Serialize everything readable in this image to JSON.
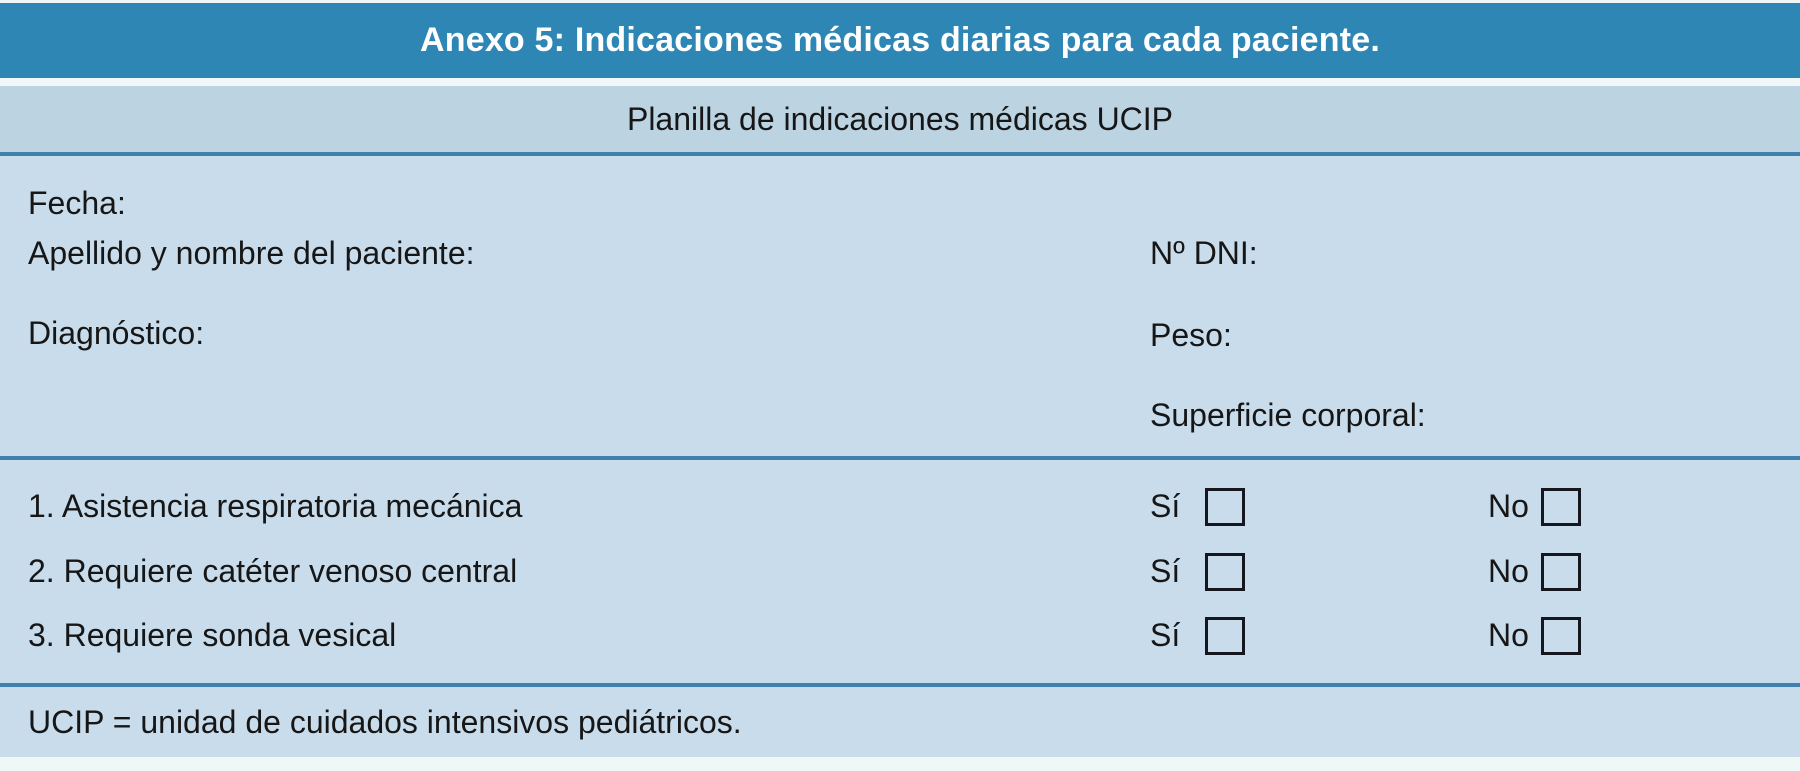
{
  "header": {
    "title": "Anexo 5: Indicaciones médicas diarias para cada paciente."
  },
  "subheader": {
    "title": "Planilla de indicaciones médicas UCIP"
  },
  "patient_info": {
    "fecha_label": "Fecha:",
    "nombre_label": "Apellido y nombre del paciente:",
    "dni_label": "Nº DNI:",
    "diagnostico_label": "Diagnóstico:",
    "peso_label": "Peso:",
    "superficie_label": "Superficie corporal:"
  },
  "items": [
    {
      "label": "1. Asistencia respiratoria mecánica",
      "yes_label": "Sí",
      "no_label": "No",
      "yes_checked": false,
      "no_checked": false
    },
    {
      "label": "2. Requiere catéter venoso central",
      "yes_label": "Sí",
      "no_label": "No",
      "yes_checked": false,
      "no_checked": false
    },
    {
      "label": "3. Requiere sonda vesical",
      "yes_label": "Sí",
      "no_label": "No",
      "yes_checked": false,
      "no_checked": false
    }
  ],
  "footer": {
    "note": "UCIP = unidad de cuidados intensivos pediátricos."
  },
  "colors": {
    "header_bg": "#2E86B5",
    "header_text": "#FFFFFF",
    "subheader_bg": "#BCD3E2",
    "body_bg": "#C9DCEB",
    "divider_color": "#3E81AD",
    "strip_bg": "#F0F8F7",
    "text_color": "#161616",
    "checkbox_border": "#16161E"
  }
}
